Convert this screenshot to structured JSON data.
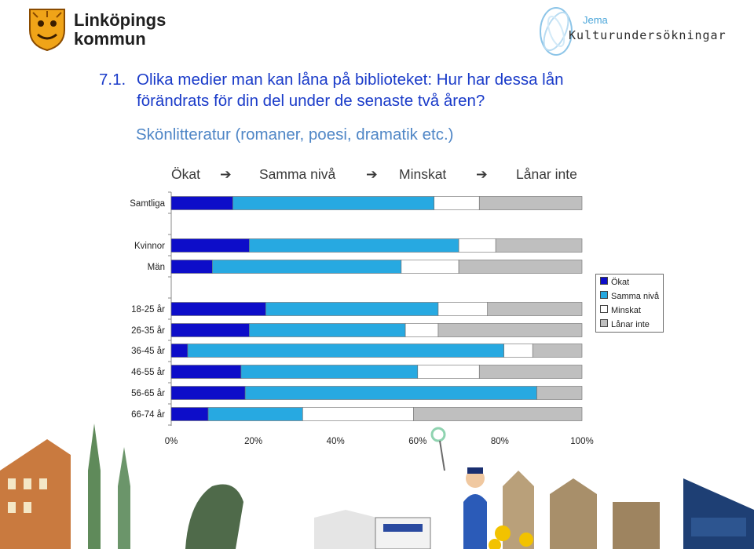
{
  "header": {
    "left_logo_text": "Linköpings kommun",
    "right_logo_small": "Jema",
    "right_logo_large": "Kulturundersökningar"
  },
  "question": {
    "number": "7.1.",
    "line1": "Olika medier man kan låna på biblioteket: Hur har dessa lån",
    "line2": "förändrats för din del under de senaste två åren?",
    "subtitle": "Skönlitteratur (romaner, poesi, dramatik etc.)"
  },
  "flow_labels": [
    "Ökat",
    "Samma nivå",
    "Minskat",
    "Lånar inte"
  ],
  "colors": {
    "okat": "#0d0dc9",
    "samma": "#27a9e1",
    "minskat": "#ffffff",
    "lanar_inte": "#bfbfbf",
    "heading": "#1a3bc9",
    "subtitle": "#4f86c6"
  },
  "chart_data": {
    "type": "bar",
    "orientation": "horizontal",
    "stacked": true,
    "categories": [
      "Samtliga",
      "Kvinnor",
      "Män",
      "18-25 år",
      "26-35 år",
      "36-45 år",
      "46-55 år",
      "56-65 år",
      "66-74 år"
    ],
    "series": [
      {
        "name": "Ökat",
        "values": [
          15,
          19,
          10,
          23,
          19,
          4,
          17,
          18,
          9
        ]
      },
      {
        "name": "Samma nivå",
        "values": [
          49,
          51,
          46,
          42,
          38,
          77,
          43,
          71,
          23
        ]
      },
      {
        "name": "Minskat",
        "values": [
          11,
          9,
          14,
          12,
          8,
          7,
          15,
          0,
          27
        ]
      },
      {
        "name": "Lånar inte",
        "values": [
          25,
          21,
          30,
          23,
          35,
          12,
          25,
          11,
          41
        ]
      }
    ],
    "xlim": [
      0,
      100
    ],
    "xticks": [
      "0%",
      "20%",
      "40%",
      "60%",
      "80%",
      "100%"
    ],
    "legend_position": "right"
  }
}
